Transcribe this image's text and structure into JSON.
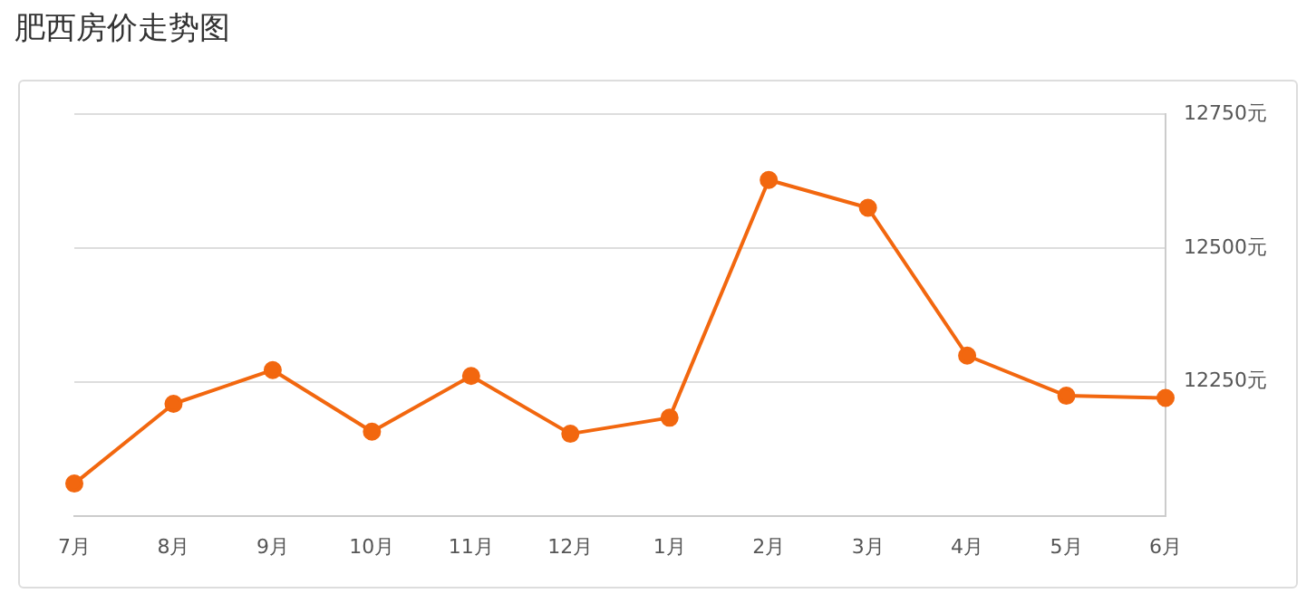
{
  "chart_data": {
    "type": "line",
    "title": "肥西房价走势图",
    "categories": [
      "7月",
      "8月",
      "9月",
      "10月",
      "11月",
      "12月",
      "1月",
      "2月",
      "3月",
      "4月",
      "5月",
      "6月"
    ],
    "series": [
      {
        "color": "#f2670f",
        "values": [
          12060,
          12209,
          12272,
          12157,
          12261,
          12153,
          12183,
          12627,
          12575,
          12299,
          12224,
          12220
        ]
      }
    ],
    "ylim": [
      12000,
      12750
    ],
    "yticks": [
      {
        "value": 12250,
        "label": "12250元"
      },
      {
        "value": 12500,
        "label": "12500元"
      },
      {
        "value": 12750,
        "label": "12750元"
      }
    ],
    "grid": "y",
    "legend": false,
    "marker": "circle",
    "line_style": "solid"
  }
}
